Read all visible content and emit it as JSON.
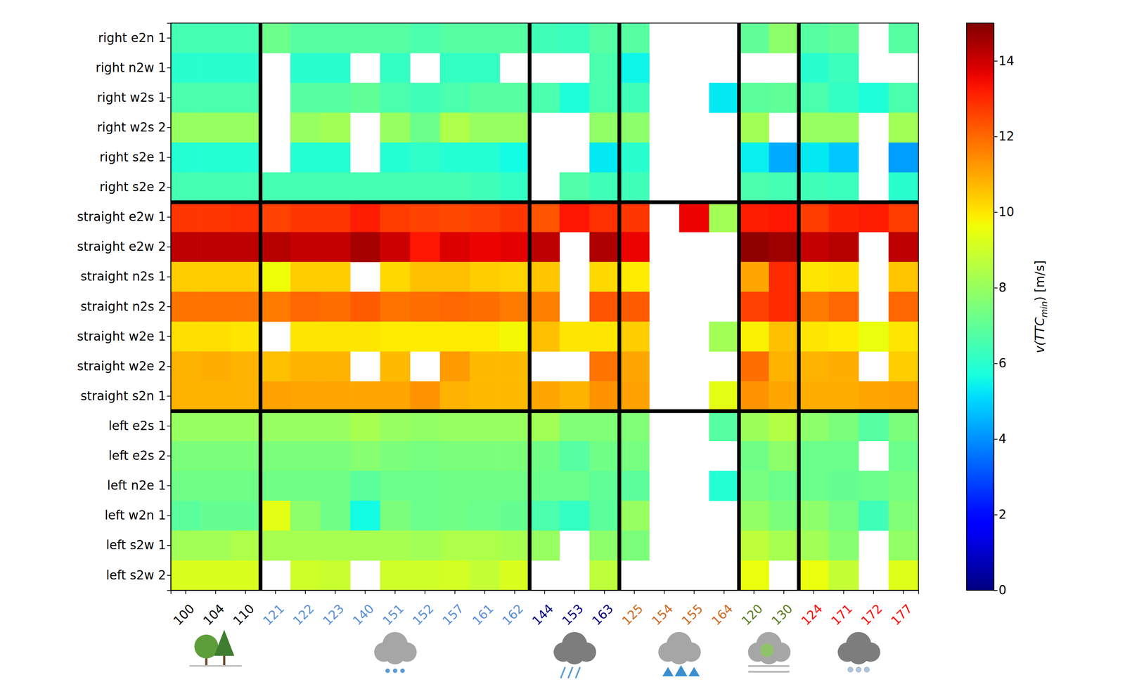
{
  "chart_data": {
    "type": "heatmap",
    "y_groups": [
      {
        "categories": [
          "right e2n 1",
          "right n2w 1",
          "right w2s 1",
          "right w2s 2",
          "right s2e 1",
          "right s2e 2"
        ]
      },
      {
        "categories": [
          "straight e2w 1",
          "straight e2w 2",
          "straight n2s 1",
          "straight n2s 2",
          "straight w2e 1",
          "straight w2e 2",
          "straight s2n 1"
        ]
      },
      {
        "categories": [
          "left e2s 1",
          "left e2s 2",
          "left n2e 1",
          "left w2n 1",
          "left s2w 1",
          "left s2w 2"
        ]
      }
    ],
    "x_groups": [
      {
        "color": "#000000",
        "categories": [
          "100",
          "104",
          "110"
        ]
      },
      {
        "color": "#5b8fd6",
        "categories": [
          "121",
          "122",
          "123",
          "140",
          "151",
          "152",
          "157",
          "161",
          "162"
        ]
      },
      {
        "color": "#00007f",
        "categories": [
          "144",
          "153",
          "163"
        ]
      },
      {
        "color": "#d2691e",
        "categories": [
          "125",
          "154",
          "155",
          "164"
        ]
      },
      {
        "color": "#5a7d1e",
        "categories": [
          "120",
          "130"
        ]
      },
      {
        "color": "#ff0000",
        "categories": [
          "124",
          "171",
          "172",
          "177"
        ]
      }
    ],
    "values": [
      [
        6.5,
        6.5,
        6.5,
        7.2,
        6.8,
        6.8,
        6.8,
        6.8,
        6.6,
        6.8,
        6.8,
        6.8,
        6.4,
        6.3,
        6.8,
        6.8,
        null,
        null,
        null,
        7.0,
        7.8,
        6.8,
        7.0,
        null,
        6.8
      ],
      [
        6.0,
        6.0,
        6.0,
        null,
        6.0,
        6.0,
        null,
        6.2,
        null,
        6.2,
        6.2,
        null,
        null,
        null,
        6.6,
        5.5,
        null,
        null,
        null,
        null,
        null,
        6.0,
        6.3,
        null,
        null
      ],
      [
        6.6,
        6.6,
        6.6,
        null,
        6.8,
        6.8,
        7.0,
        6.6,
        6.4,
        6.6,
        6.8,
        6.8,
        6.6,
        5.8,
        6.6,
        6.4,
        null,
        null,
        5.3,
        6.9,
        7.0,
        6.6,
        6.2,
        5.8,
        6.6
      ],
      [
        8.0,
        8.0,
        8.0,
        null,
        8.0,
        8.2,
        null,
        8.0,
        7.2,
        8.4,
        8.0,
        8.0,
        null,
        null,
        7.9,
        7.8,
        null,
        null,
        null,
        8.2,
        null,
        8.0,
        8.0,
        null,
        8.2
      ],
      [
        5.9,
        5.9,
        5.9,
        null,
        5.9,
        5.9,
        null,
        5.9,
        6.1,
        5.9,
        5.9,
        5.6,
        null,
        null,
        5.3,
        6.0,
        null,
        null,
        null,
        5.4,
        4.4,
        5.3,
        4.8,
        null,
        4.2
      ],
      [
        6.5,
        6.5,
        6.5,
        6.5,
        6.5,
        6.5,
        6.5,
        6.5,
        6.5,
        6.5,
        6.4,
        6.2,
        null,
        6.7,
        6.4,
        6.4,
        null,
        null,
        null,
        6.6,
        6.5,
        6.4,
        6.3,
        null,
        6.0
      ],
      [
        12.8,
        12.8,
        12.9,
        12.6,
        12.8,
        12.8,
        13.2,
        12.7,
        12.6,
        12.5,
        12.6,
        12.8,
        12.3,
        13.3,
        12.9,
        12.8,
        null,
        13.6,
        8.2,
        13.2,
        13.3,
        12.7,
        13.1,
        13.2,
        12.7
      ],
      [
        14.2,
        14.2,
        14.2,
        14.3,
        14.1,
        14.1,
        14.5,
        14.0,
        13.3,
        13.8,
        13.6,
        13.7,
        14.2,
        null,
        14.4,
        13.6,
        null,
        null,
        null,
        14.8,
        14.6,
        14.1,
        14.3,
        null,
        14.2
      ],
      [
        10.4,
        10.4,
        10.4,
        9.6,
        10.4,
        10.4,
        null,
        10.2,
        10.6,
        10.6,
        10.4,
        10.3,
        10.5,
        null,
        10.2,
        9.9,
        null,
        null,
        null,
        11.0,
        13.0,
        10.0,
        10.1,
        null,
        10.5
      ],
      [
        11.8,
        11.8,
        11.8,
        11.7,
        12.0,
        11.9,
        12.2,
        11.8,
        11.9,
        12.0,
        11.9,
        11.7,
        11.6,
        null,
        12.3,
        12.2,
        null,
        null,
        null,
        12.6,
        13.0,
        11.7,
        12.0,
        null,
        12.0
      ],
      [
        10.1,
        10.1,
        10.0,
        null,
        10.0,
        10.0,
        10.0,
        9.9,
        9.9,
        9.9,
        9.9,
        9.7,
        10.6,
        10.0,
        10.0,
        10.4,
        null,
        null,
        8.2,
        9.8,
        10.6,
        10.0,
        9.9,
        9.5,
        10.0
      ],
      [
        10.8,
        10.9,
        10.8,
        10.6,
        10.8,
        10.8,
        null,
        10.7,
        null,
        11.2,
        10.7,
        10.7,
        null,
        null,
        11.8,
        11.0,
        null,
        null,
        null,
        11.9,
        10.8,
        10.8,
        10.9,
        null,
        10.4
      ],
      [
        10.8,
        10.8,
        10.8,
        11.1,
        11.0,
        11.0,
        11.0,
        11.0,
        11.3,
        10.8,
        10.7,
        10.7,
        11.0,
        10.8,
        11.3,
        11.1,
        null,
        null,
        9.4,
        11.3,
        11.0,
        10.9,
        10.9,
        11.0,
        11.1
      ],
      [
        8.0,
        8.0,
        8.0,
        8.0,
        8.0,
        8.0,
        8.3,
        8.0,
        7.9,
        8.0,
        8.0,
        8.0,
        8.2,
        7.6,
        7.6,
        7.6,
        null,
        null,
        6.8,
        8.1,
        8.5,
        7.8,
        7.5,
        6.8,
        7.5
      ],
      [
        7.5,
        7.5,
        7.5,
        7.5,
        7.5,
        7.5,
        7.7,
        7.5,
        7.4,
        7.5,
        7.5,
        7.5,
        7.3,
        6.8,
        7.3,
        7.4,
        null,
        null,
        null,
        7.3,
        7.8,
        7.2,
        7.2,
        null,
        7.2
      ],
      [
        7.3,
        7.3,
        7.3,
        7.3,
        7.3,
        7.3,
        6.9,
        7.2,
        7.2,
        7.3,
        7.3,
        7.3,
        7.2,
        7.2,
        7.0,
        6.9,
        null,
        null,
        5.9,
        7.4,
        7.2,
        7.2,
        7.1,
        7.2,
        7.4
      ],
      [
        6.9,
        7.1,
        7.1,
        9.4,
        7.8,
        7.3,
        5.6,
        7.5,
        7.2,
        7.3,
        7.2,
        7.1,
        6.6,
        6.2,
        6.9,
        8.0,
        null,
        null,
        null,
        7.9,
        7.5,
        7.8,
        7.4,
        6.4,
        7.6
      ],
      [
        8.2,
        8.2,
        8.4,
        8.3,
        8.3,
        8.3,
        8.3,
        8.3,
        8.2,
        8.4,
        8.4,
        8.3,
        8.0,
        null,
        7.8,
        7.5,
        null,
        null,
        null,
        8.7,
        8.3,
        8.2,
        7.7,
        null,
        7.9
      ],
      [
        9.2,
        9.2,
        9.2,
        null,
        9.0,
        8.9,
        null,
        9.0,
        9.0,
        9.1,
        8.8,
        9.2,
        null,
        null,
        8.7,
        null,
        null,
        null,
        null,
        9.5,
        null,
        9.5,
        8.8,
        null,
        9.3
      ]
    ],
    "colorbar": {
      "range": [
        0,
        15
      ],
      "ticks": [
        0,
        2,
        4,
        6,
        8,
        10,
        12,
        14
      ],
      "label": [
        {
          "text": "v(TTC",
          "italic": true
        },
        {
          "text": "min",
          "italic": true,
          "sub": true
        },
        {
          "text": ") [m/s]",
          "italic": false
        }
      ]
    }
  }
}
